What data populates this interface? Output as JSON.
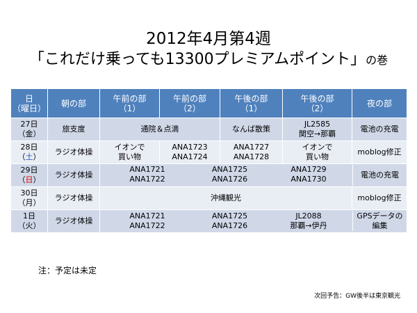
{
  "title": {
    "line1": "2012年4月第4週",
    "line2_main": "「これだけ乗っても13300プレミアムポイント」",
    "line2_suffix": "の巻"
  },
  "table": {
    "headers": [
      {
        "l1": "日",
        "l2": "（曜日）"
      },
      {
        "l1": "朝の部",
        "l2": ""
      },
      {
        "l1": "午前の部",
        "l2": "（1）"
      },
      {
        "l1": "午前の部",
        "l2": "（2）"
      },
      {
        "l1": "午後の部",
        "l2": "（1）"
      },
      {
        "l1": "午後の部",
        "l2": "（2）"
      },
      {
        "l1": "夜の部",
        "l2": ""
      }
    ],
    "rows": [
      {
        "date": "27日",
        "dow_l": "（",
        "dow": "金",
        "dow_r": "）",
        "morning": "旅支度",
        "am_merged": "通院＆点滴",
        "pm1": "なんば散策",
        "pm2_l1": "JL2585",
        "pm2_l2": "関空→那覇",
        "night": "電池の充電"
      },
      {
        "date": "28日",
        "dow_l": "（",
        "dow": "土",
        "dow_r": "）",
        "morning": "ラジオ体操",
        "am1_l1": "イオンで",
        "am1_l2": "買い物",
        "am2_l1": "ANA1723",
        "am2_l2": "ANA1724",
        "pm1_l1": "ANA1727",
        "pm1_l2": "ANA1728",
        "pm2_l1": "イオンで",
        "pm2_l2": "買い物",
        "night": "moblog修正"
      },
      {
        "date": "29日",
        "dow_l": "（",
        "dow": "日",
        "dow_r": "）",
        "morning": "ラジオ体操",
        "c1_l1": "ANA1721",
        "c1_l2": "ANA1722",
        "c2_l1": "ANA1725",
        "c2_l2": "ANA1726",
        "c3_l1": "ANA1729",
        "c3_l2": "ANA1730",
        "night": "電池の充電"
      },
      {
        "date": "30日",
        "dow_l": "（",
        "dow": "月",
        "dow_r": "）",
        "morning": "ラジオ体操",
        "merged": "沖縄観光",
        "night": "moblog修正"
      },
      {
        "date": "1日",
        "dow_l": "（",
        "dow": "火",
        "dow_r": "）",
        "morning": "ラジオ体操",
        "c1_l1": "ANA1721",
        "c1_l2": "ANA1722",
        "c2_l1": "ANA1725",
        "c2_l2": "ANA1726",
        "c3_l1": "JL2088",
        "c3_l2": "那覇→伊丹",
        "night_l1": "GPSデータの",
        "night_l2": "編集"
      }
    ]
  },
  "note": "注：予定は未定",
  "preview": "次回予告：GW後半は東京観光",
  "colors": {
    "header_bg": "#4f81bd",
    "row_odd": "#d0d8e8",
    "row_even": "#e9edf4",
    "saturday": "#1f56c8",
    "sunday": "#e00000"
  }
}
